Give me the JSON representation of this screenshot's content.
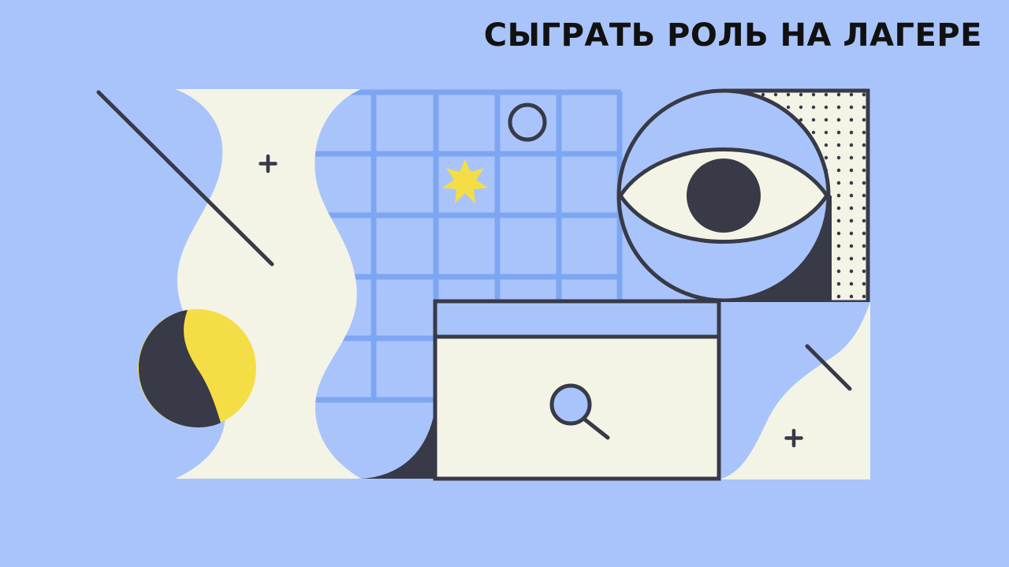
{
  "title": "СЫГРАТЬ РОЛЬ НА ЛАГЕРЕ",
  "colors": {
    "background": "#A9C4FB",
    "cream": "#F3F4E6",
    "dark": "#383A47",
    "yellow": "#F5DD45",
    "grid": "#7DA6F2"
  },
  "illustration": {
    "elements": [
      "wavy-vase-shape",
      "grid-panel",
      "small-circle",
      "yellow-star",
      "eye-in-circle",
      "dotted-panel",
      "browser-window",
      "magnifier-icon",
      "half-moon-circle",
      "plus-icon",
      "diagonal-line"
    ]
  }
}
